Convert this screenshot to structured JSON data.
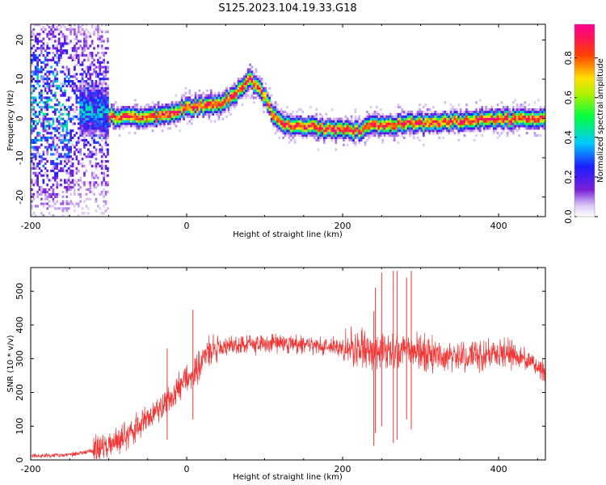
{
  "title": "S125.2023.104.19.33.G18",
  "chart_data": [
    {
      "type": "heatmap",
      "title": "S125.2023.104.19.33.G18",
      "xlabel": "Height of straight line (km)",
      "ylabel": "Frequency (Hz)",
      "xlim": [
        -200,
        460
      ],
      "ylim": [
        -25,
        24
      ],
      "xticks": [
        -200,
        0,
        200,
        400
      ],
      "yticks": [
        -20,
        -10,
        0,
        10,
        20
      ],
      "colorbar": {
        "label": "Normalized spectral amplitude",
        "range": [
          0,
          0.97
        ],
        "ticks": [
          0.0,
          0.2,
          0.4,
          0.6,
          0.8
        ],
        "colormap": "rainbow (violet-blue-cyan-green-yellow-red-magenta)"
      },
      "ridge": {
        "x": [
          -200,
          -150,
          -120,
          -100,
          -90,
          -60,
          -30,
          0,
          20,
          40,
          55,
          70,
          80,
          90,
          100,
          110,
          120,
          140,
          160,
          180,
          200,
          220,
          240,
          260,
          280,
          300,
          320,
          340,
          360,
          380,
          400,
          420,
          440,
          460
        ],
        "y": [
          1.5,
          1.5,
          2,
          0.5,
          0,
          0,
          0.5,
          2.5,
          3,
          3.5,
          5,
          8,
          9.5,
          8,
          5,
          0.5,
          -1.5,
          -2,
          -2.5,
          -3,
          -3,
          -3.5,
          -2,
          -2,
          -1.5,
          -1.5,
          -1.5,
          -1,
          -1,
          -0.5,
          -0.5,
          -0.5,
          -0.5,
          -0.5
        ]
      }
    },
    {
      "type": "line",
      "title": "",
      "xlabel": "Height of straight line (km)",
      "ylabel": "SNR (10 * v/v)",
      "xlim": [
        -200,
        460
      ],
      "ylim": [
        0,
        570
      ],
      "xticks": [
        -200,
        0,
        200,
        400
      ],
      "yticks": [
        0,
        100,
        200,
        300,
        400,
        500
      ],
      "color": "#f03535",
      "series": [
        {
          "x": [
            -200,
            -180,
            -160,
            -140,
            -120,
            -100,
            -80,
            -60,
            -50,
            -40,
            -30,
            -20,
            -15,
            -10,
            -5,
            0,
            10,
            20,
            30,
            40,
            50,
            60,
            80,
            100,
            120,
            140,
            160,
            180,
            200,
            220,
            240,
            260,
            280,
            300,
            320,
            340,
            360,
            380,
            400,
            420,
            440,
            460
          ],
          "values": [
            12,
            12,
            14,
            18,
            28,
            48,
            68,
            100,
            120,
            140,
            160,
            180,
            200,
            215,
            225,
            240,
            260,
            300,
            320,
            330,
            335,
            340,
            342,
            345,
            345,
            345,
            340,
            335,
            335,
            330,
            325,
            325,
            320,
            315,
            310,
            305,
            305,
            310,
            320,
            310,
            290,
            260
          ]
        }
      ],
      "spikes": [
        {
          "x": 8,
          "min": 120,
          "max": 445
        },
        {
          "x": -25,
          "min": 60,
          "max": 330
        },
        {
          "x": 240,
          "min": 42,
          "max": 440
        },
        {
          "x": 242,
          "min": 80,
          "max": 510
        },
        {
          "x": 250,
          "min": 100,
          "max": 555
        },
        {
          "x": 265,
          "min": 50,
          "max": 560
        },
        {
          "x": 270,
          "min": 60,
          "max": 560
        },
        {
          "x": 282,
          "min": 120,
          "max": 540
        },
        {
          "x": 288,
          "min": 90,
          "max": 560
        }
      ]
    }
  ]
}
